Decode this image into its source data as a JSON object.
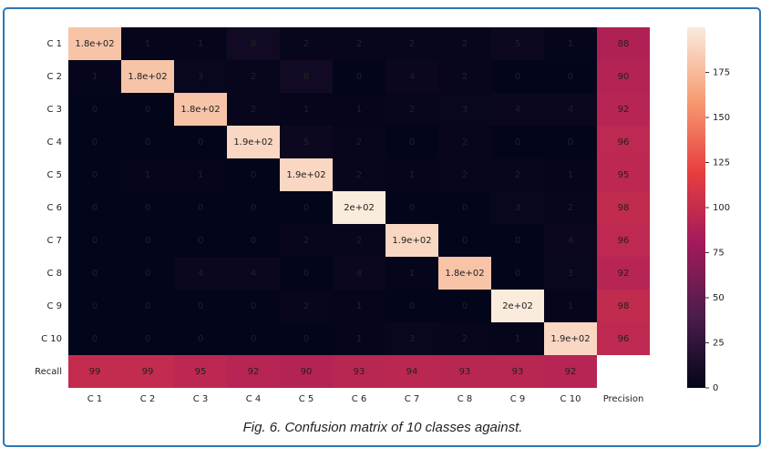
{
  "chart_data": {
    "type": "heatmap",
    "caption": "Fig. 6. Confusion matrix of 10 classes against.",
    "rows": [
      "C 1",
      "C 2",
      "C 3",
      "C 4",
      "C 5",
      "C 6",
      "C 7",
      "C 8",
      "C 9",
      "C 10",
      "Recall"
    ],
    "columns": [
      "C 1",
      "C 2",
      "C 3",
      "C 4",
      "C 5",
      "C 6",
      "C 7",
      "C 8",
      "C 9",
      "C 10",
      "Precision"
    ],
    "values": [
      [
        180,
        1,
        1,
        8,
        2,
        2,
        2,
        2,
        5,
        1,
        88
      ],
      [
        1,
        180,
        3,
        2,
        8,
        0,
        4,
        2,
        0,
        0,
        90
      ],
      [
        0,
        0,
        180,
        2,
        1,
        1,
        2,
        3,
        4,
        4,
        92
      ],
      [
        0,
        0,
        0,
        190,
        5,
        2,
        0,
        2,
        0,
        0,
        96
      ],
      [
        0,
        1,
        1,
        0,
        190,
        2,
        1,
        2,
        2,
        1,
        95
      ],
      [
        0,
        0,
        0,
        0,
        0,
        200,
        0,
        0,
        3,
        2,
        98
      ],
      [
        0,
        0,
        0,
        0,
        2,
        2,
        190,
        0,
        0,
        4,
        96
      ],
      [
        0,
        0,
        4,
        4,
        0,
        4,
        1,
        180,
        0,
        3,
        92
      ],
      [
        0,
        0,
        0,
        0,
        2,
        1,
        0,
        0,
        200,
        1,
        98
      ],
      [
        0,
        0,
        0,
        0,
        0,
        1,
        3,
        2,
        1,
        190,
        96
      ],
      [
        99,
        99,
        95,
        92,
        90,
        93,
        94,
        93,
        93,
        92,
        null
      ]
    ],
    "value_labels": [
      [
        "1.8e+02",
        null,
        null,
        null,
        null,
        null,
        null,
        null,
        null,
        null,
        null
      ],
      [
        null,
        "1.8e+02",
        null,
        null,
        null,
        null,
        null,
        null,
        null,
        null,
        null
      ],
      [
        null,
        null,
        "1.8e+02",
        null,
        null,
        null,
        null,
        null,
        null,
        null,
        null
      ],
      [
        null,
        null,
        null,
        "1.9e+02",
        null,
        null,
        null,
        null,
        null,
        null,
        null
      ],
      [
        null,
        null,
        null,
        null,
        "1.9e+02",
        null,
        null,
        null,
        null,
        null,
        null
      ],
      [
        null,
        null,
        null,
        null,
        null,
        "2e+02",
        null,
        null,
        null,
        null,
        null
      ],
      [
        null,
        null,
        null,
        null,
        null,
        null,
        "1.9e+02",
        null,
        null,
        null,
        null
      ],
      [
        null,
        null,
        null,
        null,
        null,
        null,
        null,
        "1.8e+02",
        null,
        null,
        null
      ],
      [
        null,
        null,
        null,
        null,
        null,
        null,
        null,
        null,
        "2e+02",
        null,
        null
      ],
      [
        null,
        null,
        null,
        null,
        null,
        null,
        null,
        null,
        null,
        "1.9e+02",
        null
      ],
      [
        null,
        null,
        null,
        null,
        null,
        null,
        null,
        null,
        null,
        null,
        null
      ]
    ],
    "zlim": [
      0,
      200
    ],
    "zticks": [
      0,
      25,
      50,
      75,
      100,
      125,
      150,
      175
    ],
    "colormap": [
      "#03051a",
      "#4c1d4b",
      "#a11a5b",
      "#e83f3f",
      "#f69c73",
      "#faebdd"
    ]
  }
}
